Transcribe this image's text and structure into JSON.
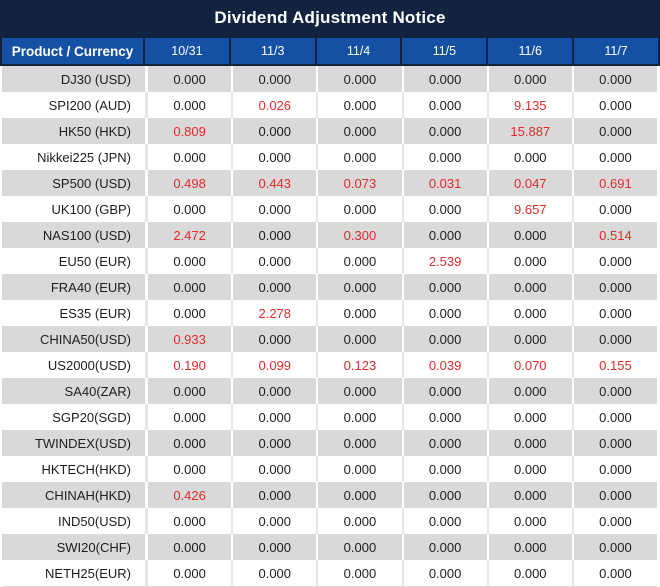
{
  "title": "Dividend Adjustment Notice",
  "colors": {
    "title_bar_navy": "#122340",
    "header_blue": "#1451a5",
    "row_stripe_gray": "#d9d9d9",
    "value_red": "#e02b2b",
    "body_text": "#1d1d1d"
  },
  "table": {
    "product_header": "Product / Currency",
    "date_headers": [
      "10/31",
      "11/3",
      "11/4",
      "11/5",
      "11/6",
      "11/7"
    ],
    "rows": [
      {
        "product": "DJ30 (USD)",
        "values": [
          "0.000",
          "0.000",
          "0.000",
          "0.000",
          "0.000",
          "0.000"
        ],
        "red_columns": []
      },
      {
        "product": "SPI200 (AUD)",
        "values": [
          "0.000",
          "0.026",
          "0.000",
          "0.000",
          "9.135",
          "0.000"
        ],
        "red_columns": [
          1,
          4
        ]
      },
      {
        "product": "HK50 (HKD)",
        "values": [
          "0.809",
          "0.000",
          "0.000",
          "0.000",
          "15.887",
          "0.000"
        ],
        "red_columns": [
          0,
          4
        ]
      },
      {
        "product": "Nikkei225 (JPN)",
        "values": [
          "0.000",
          "0.000",
          "0.000",
          "0.000",
          "0.000",
          "0.000"
        ],
        "red_columns": []
      },
      {
        "product": "SP500 (USD)",
        "values": [
          "0.498",
          "0.443",
          "0.073",
          "0.031",
          "0.047",
          "0.691"
        ],
        "red_columns": [
          0,
          1,
          2,
          3,
          4,
          5
        ]
      },
      {
        "product": "UK100 (GBP)",
        "values": [
          "0.000",
          "0.000",
          "0.000",
          "0.000",
          "9.657",
          "0.000"
        ],
        "red_columns": [
          4
        ]
      },
      {
        "product": "NAS100 (USD)",
        "values": [
          "2.472",
          "0.000",
          "0.300",
          "0.000",
          "0.000",
          "0.514"
        ],
        "red_columns": [
          0,
          2,
          5
        ]
      },
      {
        "product": "EU50 (EUR)",
        "values": [
          "0.000",
          "0.000",
          "0.000",
          "2.539",
          "0.000",
          "0.000"
        ],
        "red_columns": [
          3
        ]
      },
      {
        "product": "FRA40 (EUR)",
        "values": [
          "0.000",
          "0.000",
          "0.000",
          "0.000",
          "0.000",
          "0.000"
        ],
        "red_columns": []
      },
      {
        "product": "ES35 (EUR)",
        "values": [
          "0.000",
          "2.278",
          "0.000",
          "0.000",
          "0.000",
          "0.000"
        ],
        "red_columns": [
          1
        ]
      },
      {
        "product": "CHINA50(USD)",
        "values": [
          "0.933",
          "0.000",
          "0.000",
          "0.000",
          "0.000",
          "0.000"
        ],
        "red_columns": [
          0
        ]
      },
      {
        "product": "US2000(USD)",
        "values": [
          "0.190",
          "0.099",
          "0.123",
          "0.039",
          "0.070",
          "0.155"
        ],
        "red_columns": [
          0,
          1,
          2,
          3,
          4,
          5
        ]
      },
      {
        "product": "SA40(ZAR)",
        "values": [
          "0.000",
          "0.000",
          "0.000",
          "0.000",
          "0.000",
          "0.000"
        ],
        "red_columns": []
      },
      {
        "product": "SGP20(SGD)",
        "values": [
          "0.000",
          "0.000",
          "0.000",
          "0.000",
          "0.000",
          "0.000"
        ],
        "red_columns": []
      },
      {
        "product": "TWINDEX(USD)",
        "values": [
          "0.000",
          "0.000",
          "0.000",
          "0.000",
          "0.000",
          "0.000"
        ],
        "red_columns": []
      },
      {
        "product": "HKTECH(HKD)",
        "values": [
          "0.000",
          "0.000",
          "0.000",
          "0.000",
          "0.000",
          "0.000"
        ],
        "red_columns": []
      },
      {
        "product": "CHINAH(HKD)",
        "values": [
          "0.426",
          "0.000",
          "0.000",
          "0.000",
          "0.000",
          "0.000"
        ],
        "red_columns": [
          0
        ]
      },
      {
        "product": "IND50(USD)",
        "values": [
          "0.000",
          "0.000",
          "0.000",
          "0.000",
          "0.000",
          "0.000"
        ],
        "red_columns": []
      },
      {
        "product": "SWI20(CHF)",
        "values": [
          "0.000",
          "0.000",
          "0.000",
          "0.000",
          "0.000",
          "0.000"
        ],
        "red_columns": []
      },
      {
        "product": "NETH25(EUR)",
        "values": [
          "0.000",
          "0.000",
          "0.000",
          "0.000",
          "0.000",
          "0.000"
        ],
        "red_columns": []
      }
    ]
  }
}
